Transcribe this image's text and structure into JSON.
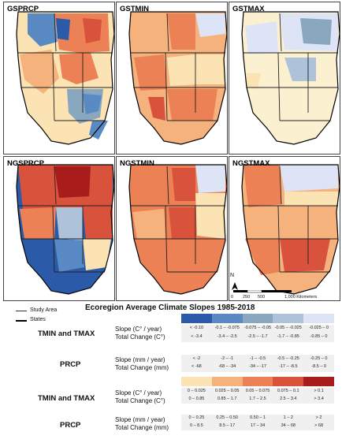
{
  "panels": [
    {
      "title": "GSPRCP"
    },
    {
      "title": "GSTMIN"
    },
    {
      "title": "GSTMAX"
    },
    {
      "title": "NGSPRCP"
    },
    {
      "title": "NGSTMIN"
    },
    {
      "title": "NGSTMAX"
    }
  ],
  "map_legend": {
    "study_area": "Study Area",
    "states": "States"
  },
  "scalebar": {
    "north": "N",
    "ticks": [
      "0",
      "250",
      "500",
      "1,000 Kilometers"
    ]
  },
  "legend": {
    "title": "Ecoregion Average Climate Slopes 1985-2018",
    "var_temp": "TMIN and TMAX",
    "var_prcp": "PRCP",
    "temp_slope_label": "Slope (C° / year)",
    "temp_total_label": "Total Change (C°)",
    "prcp_slope_label": "Slope (mm / year)",
    "prcp_total_label": "Total Change (mm)",
    "cool": {
      "colors": [
        "#2b5aa8",
        "#5a8ac4",
        "#8aa7c0",
        "#aec3da",
        "#dde4f5"
      ],
      "temp_slope": [
        "< -0.10",
        "-0.1 – -0.075",
        "-0.075 – -0.05",
        "-0.05 – -0.025",
        "-0.025 – 0"
      ],
      "temp_total": [
        "< -3.4",
        "-3.4 – -2.5",
        "-2.5 – -1.7",
        "-1.7 – -0.85",
        "-0.85 – 0"
      ],
      "prcp_slope": [
        "< -2",
        "-2 – -1",
        "-1 – -0.5",
        "-0.5 – -0.25",
        "-0.25 – 0"
      ],
      "prcp_total": [
        "< -68",
        "-68 – -34",
        "-34 – -17",
        "-17 – -8.5",
        "-8.5 – 0"
      ]
    },
    "warm": {
      "colors": [
        "#fbe3b4",
        "#f5b27d",
        "#ec8156",
        "#d9523b",
        "#a81c1c"
      ],
      "temp_slope": [
        "0 – 0.025",
        "0.025 – 0.05",
        "0.05 – 0.075",
        "0.075 – 0.1",
        "> 0.1"
      ],
      "temp_total": [
        "0 – 0.85",
        "0.85 – 1.7",
        "1.7 – 2.5",
        "2.5 – 3.4",
        "> 3.4"
      ],
      "prcp_slope": [
        "0 – 0.25",
        "0.25 – 0.50",
        "0.50 – 1",
        "1 – 2",
        "> 2"
      ],
      "prcp_total": [
        "0 – 8.5",
        "8.5 – 17",
        "17 – 34",
        "34 – 68",
        "> 68"
      ]
    }
  }
}
